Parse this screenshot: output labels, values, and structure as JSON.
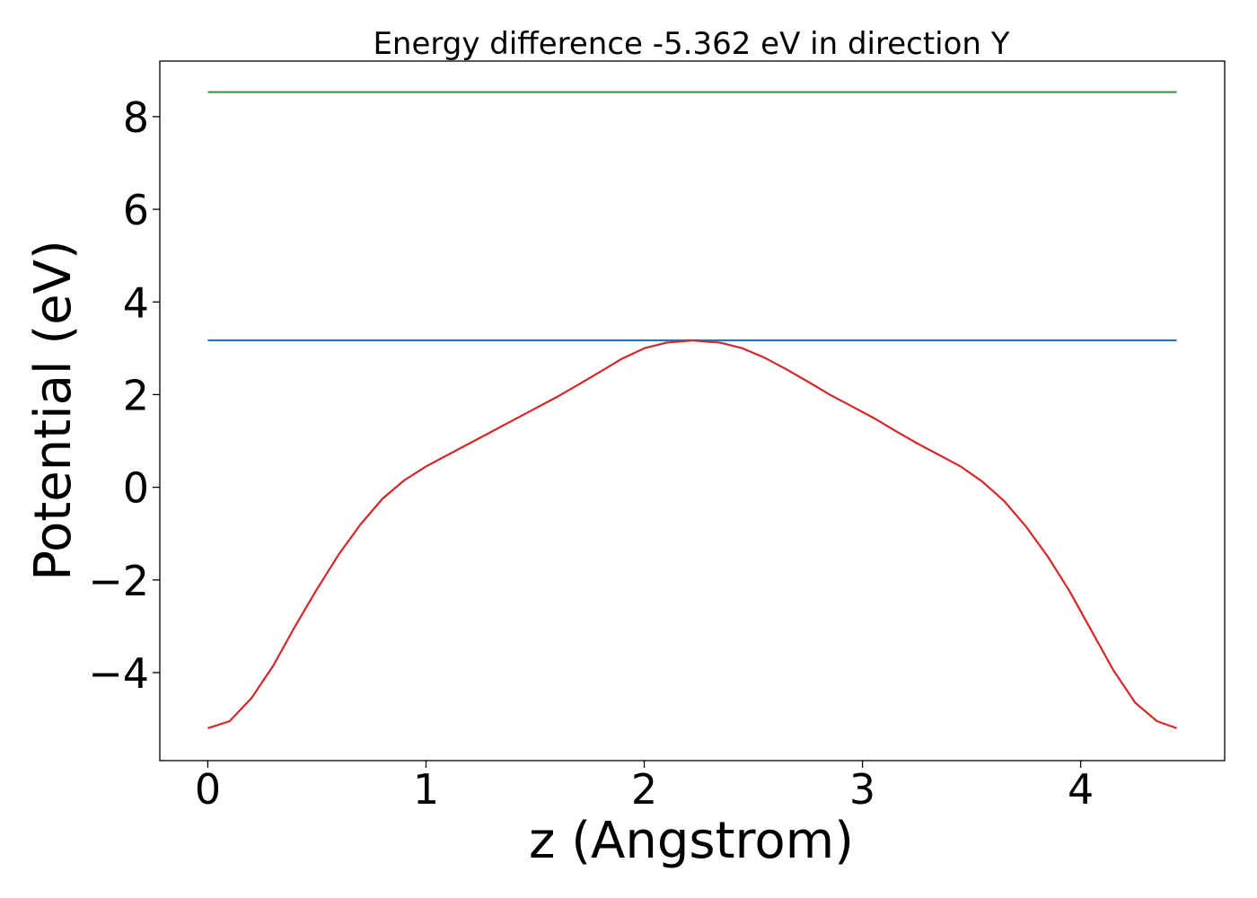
{
  "chart_data": {
    "type": "line",
    "title": "Energy difference -5.362 eV in direction Y",
    "xlabel": "z (Angstrom)",
    "ylabel": "Potential (eV)",
    "xlim": [
      -0.22,
      4.66
    ],
    "ylim": [
      -5.9,
      9.2
    ],
    "xticks": [
      0,
      1,
      2,
      3,
      4
    ],
    "yticks": [
      -4,
      -2,
      0,
      2,
      4,
      6,
      8
    ],
    "ytick_labels": [
      "−4",
      "−2",
      "0",
      "2",
      "4",
      "6",
      "8"
    ],
    "grid": false,
    "series": [
      {
        "color": "#2ca02c",
        "x": [
          0,
          4.44
        ],
        "y": [
          8.53,
          8.53
        ]
      },
      {
        "color": "#1f77b4",
        "x": [
          0,
          4.44
        ],
        "y": [
          3.17,
          3.17
        ]
      },
      {
        "color": "#d62728",
        "x": [
          0,
          0.1,
          0.2,
          0.3,
          0.4,
          0.5,
          0.6,
          0.7,
          0.8,
          0.9,
          1.0,
          1.1,
          1.2,
          1.3,
          1.4,
          1.5,
          1.6,
          1.7,
          1.8,
          1.9,
          2.0,
          2.1,
          2.22,
          2.35,
          2.45,
          2.55,
          2.65,
          2.75,
          2.85,
          2.95,
          3.05,
          3.15,
          3.25,
          3.35,
          3.45,
          3.55,
          3.65,
          3.75,
          3.85,
          3.95,
          4.05,
          4.15,
          4.25,
          4.35,
          4.44
        ],
        "y": [
          -5.2,
          -5.05,
          -4.55,
          -3.85,
          -3.0,
          -2.2,
          -1.45,
          -0.8,
          -0.25,
          0.15,
          0.45,
          0.7,
          0.95,
          1.2,
          1.45,
          1.7,
          1.95,
          2.22,
          2.5,
          2.78,
          3.0,
          3.12,
          3.17,
          3.12,
          3.0,
          2.8,
          2.55,
          2.28,
          2.0,
          1.75,
          1.5,
          1.22,
          0.95,
          0.7,
          0.45,
          0.12,
          -0.3,
          -0.85,
          -1.5,
          -2.25,
          -3.1,
          -3.95,
          -4.65,
          -5.05,
          -5.2
        ]
      }
    ]
  }
}
